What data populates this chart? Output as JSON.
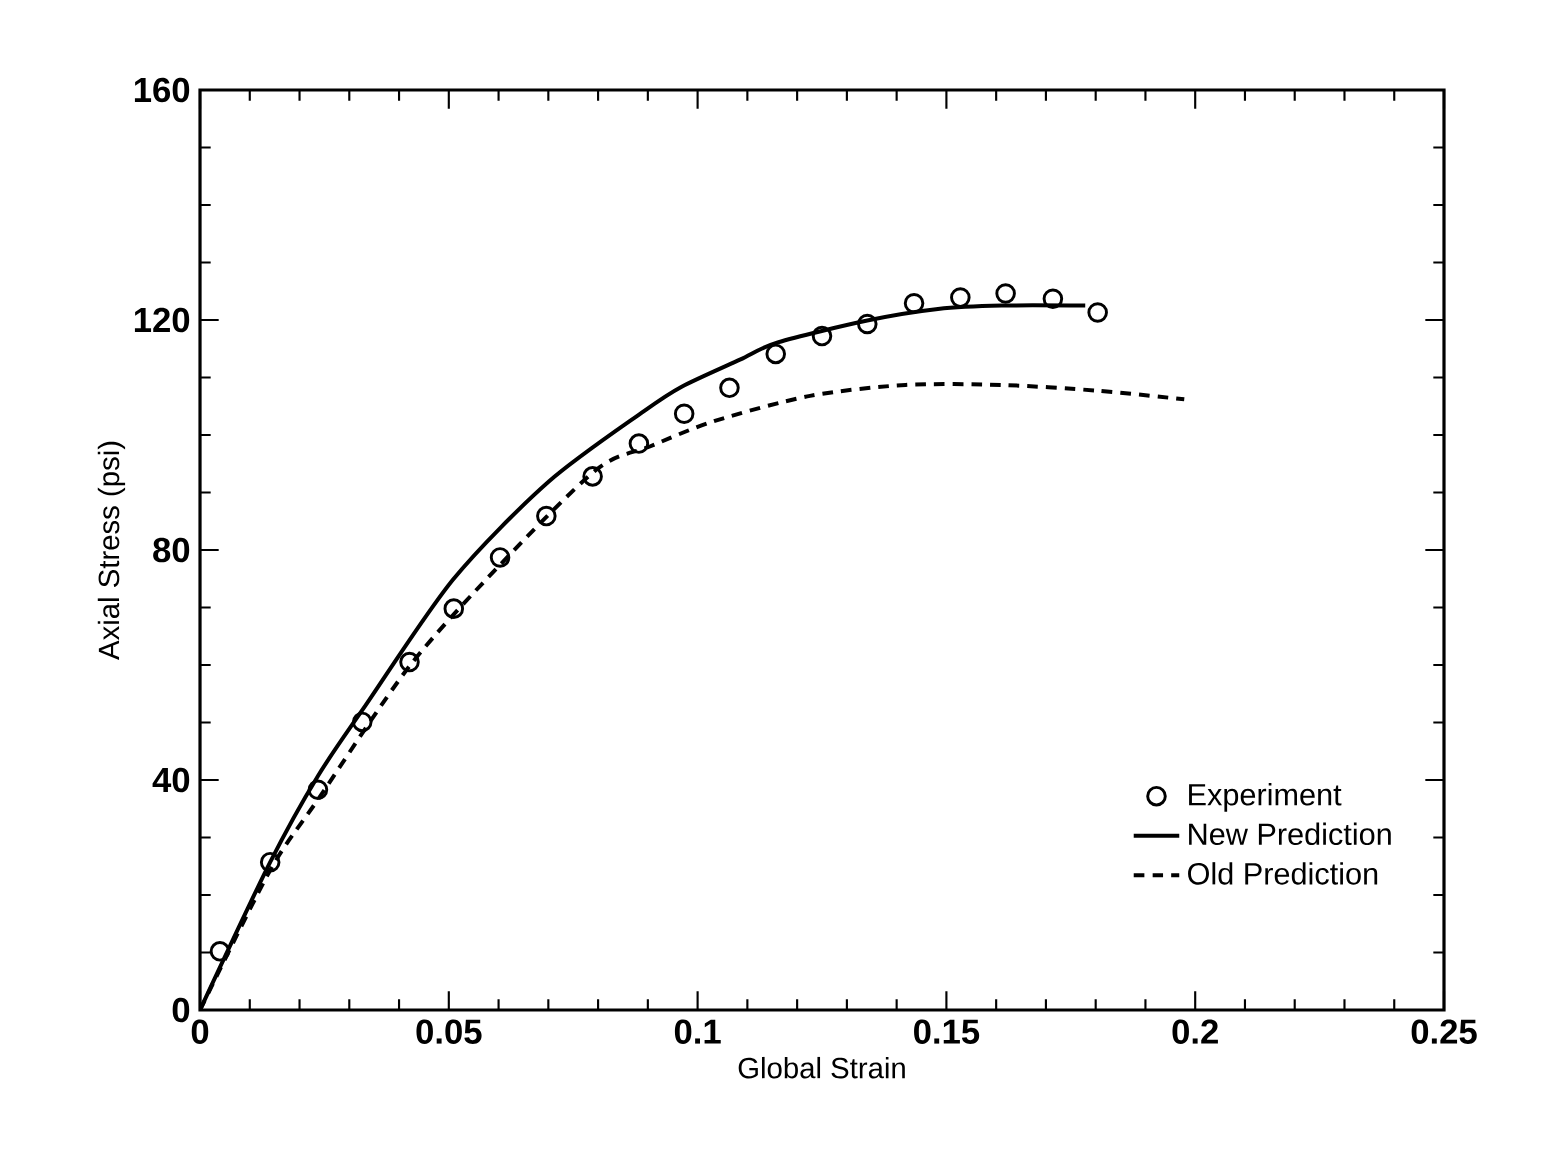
{
  "chart_data": {
    "type": "line",
    "xlabel": "Global Strain",
    "ylabel": "Axial Stress (psi)",
    "xlim": [
      0,
      0.25
    ],
    "ylim": [
      0,
      160
    ],
    "xticks": [
      0,
      0.05,
      0.1,
      0.15,
      0.2,
      0.25
    ],
    "yticks": [
      0,
      40,
      80,
      120,
      160
    ],
    "grid": false,
    "legend": "right",
    "series": [
      {
        "name": "Experiment",
        "type": "scatter",
        "marker": "circle",
        "color": "#000000",
        "x": [
          0.004,
          0.0141,
          0.0237,
          0.0326,
          0.0421,
          0.051,
          0.0603,
          0.0696,
          0.0789,
          0.0882,
          0.0973,
          0.1064,
          0.1157,
          0.125,
          0.1341,
          0.1435,
          0.1528,
          0.1619,
          0.1714,
          0.1804
        ],
        "values": [
          10.2,
          25.7,
          38.3,
          50.1,
          60.5,
          69.8,
          78.7,
          85.9,
          92.8,
          98.5,
          103.7,
          108.2,
          114.1,
          117.2,
          119.3,
          122.9,
          123.9,
          124.6,
          123.7,
          121.3
        ]
      },
      {
        "name": "New Prediction",
        "line_style": "solid",
        "color": "#000000",
        "x": [
          0,
          0.0141,
          0.0237,
          0.0333,
          0.0509,
          0.0701,
          0.0893,
          0.0968,
          0.1085,
          0.1161,
          0.1341,
          0.1483,
          0.1611,
          0.1779
        ],
        "values": [
          0,
          25.7,
          40.7,
          53,
          74.9,
          91.9,
          104.2,
          108.4,
          113.1,
          116.1,
          119.9,
          121.9,
          122.5,
          122.5
        ]
      },
      {
        "name": "Old Prediction",
        "line_style": "dashed",
        "color": "#000000",
        "x": [
          0,
          0.0141,
          0.0237,
          0.0421,
          0.0605,
          0.0797,
          0.0904,
          0.1033,
          0.1226,
          0.1418,
          0.1611,
          0.1804,
          0.1978
        ],
        "values": [
          0,
          24.3,
          36.6,
          59.8,
          77.6,
          94,
          98,
          102.4,
          106.8,
          108.7,
          108.7,
          107.7,
          106.2
        ]
      }
    ]
  }
}
